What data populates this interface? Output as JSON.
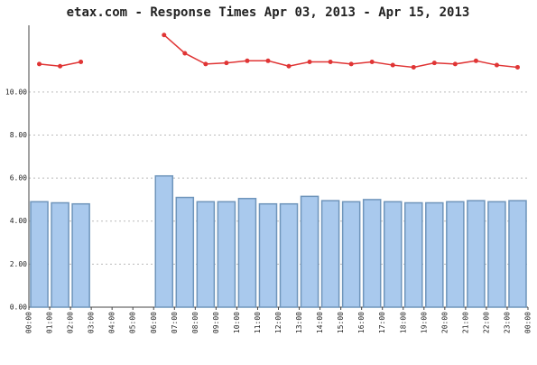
{
  "chart_data": {
    "type": "bar-line",
    "title": "etax.com - Response Times Apr 03, 2013 - Apr 15, 2013",
    "x_ticks": [
      "00:00",
      "01:00",
      "02:00",
      "03:00",
      "04:00",
      "05:00",
      "06:00",
      "07:00",
      "08:00",
      "09:00",
      "10:00",
      "11:00",
      "12:00",
      "13:00",
      "14:00",
      "15:00",
      "16:00",
      "17:00",
      "18:00",
      "19:00",
      "20:00",
      "21:00",
      "22:00",
      "23:00",
      "00:00"
    ],
    "series": [
      {
        "type": "bar",
        "color": "#a9c9ed",
        "border": "#6f95bb",
        "values": [
          4.9,
          4.85,
          4.8,
          null,
          null,
          null,
          6.1,
          5.1,
          4.9,
          4.9,
          5.05,
          4.8,
          4.8,
          5.15,
          4.95,
          4.9,
          5.0,
          4.9,
          4.85,
          4.85,
          4.9,
          4.95,
          4.9,
          4.95
        ]
      },
      {
        "type": "line",
        "color": "#e03535",
        "values": [
          11.3,
          11.2,
          11.4,
          null,
          null,
          null,
          12.65,
          11.8,
          11.3,
          11.35,
          11.45,
          11.45,
          11.2,
          11.4,
          11.4,
          11.3,
          11.4,
          11.25,
          11.15,
          11.35,
          11.3,
          11.45,
          11.25,
          11.15
        ]
      }
    ],
    "ylim": [
      0,
      13.1
    ],
    "yticks": [
      {
        "value": 0,
        "label": "0.00"
      },
      {
        "value": 2,
        "label": "2.00"
      },
      {
        "value": 4,
        "label": "4.00"
      },
      {
        "value": 6,
        "label": "6.00"
      },
      {
        "value": 8,
        "label": "8.00"
      },
      {
        "value": 10,
        "label": "10.00"
      }
    ],
    "grid": true
  }
}
